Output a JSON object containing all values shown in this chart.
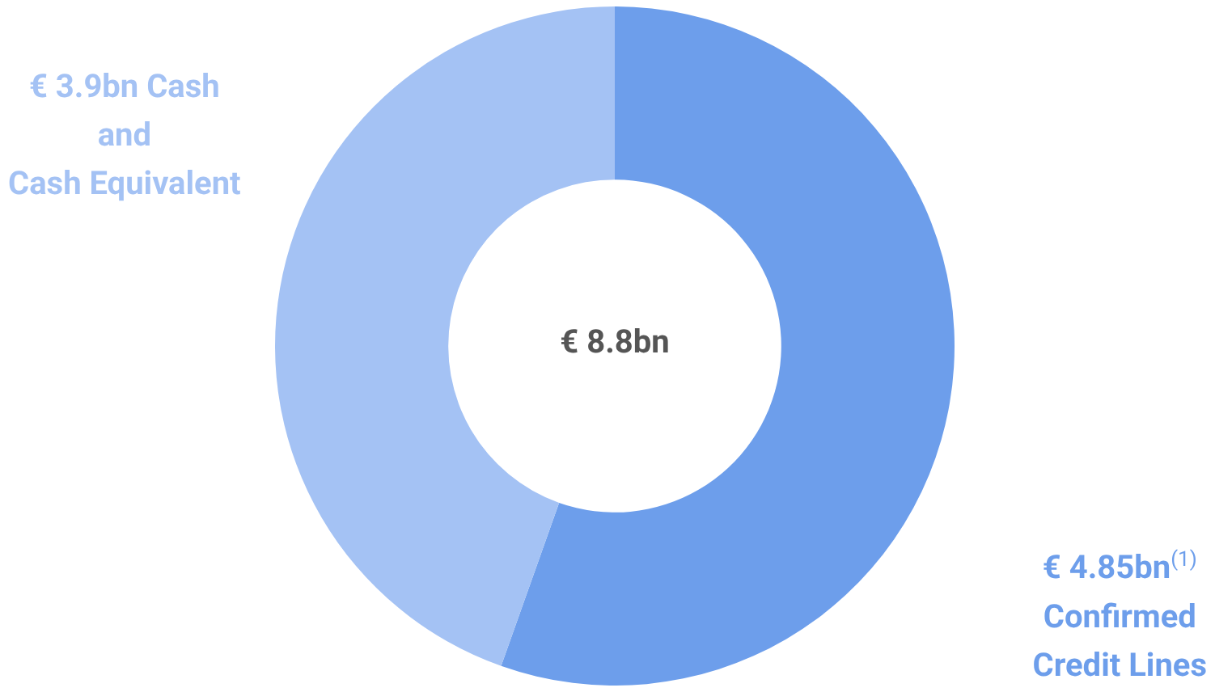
{
  "chart_data": {
    "type": "donut",
    "categories": [
      "€ 4.85bn$^{(1)}$\nConfirmed\nCredit Lines",
      "€ 3.9bn Cash\nand\nCash Equivalent"
    ],
    "values": [
      4.85,
      3.9
    ],
    "colors": [
      "#6d9eeb",
      "#a4c2f4"
    ],
    "annotations": [
      "€ 8.8bn"
    ],
    "legend": false
  }
}
